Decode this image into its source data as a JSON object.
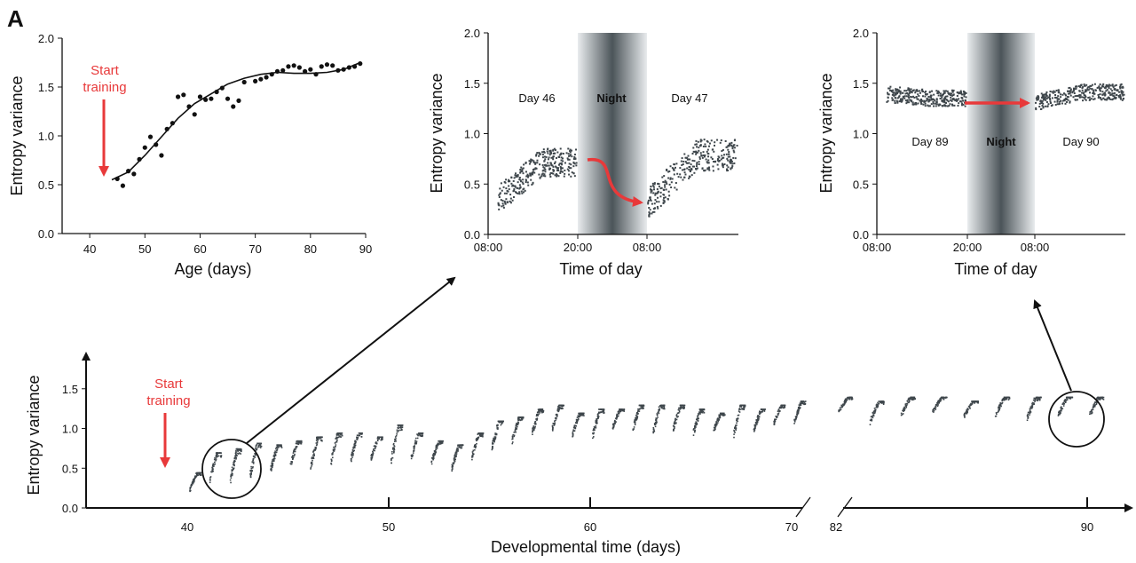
{
  "panel_label": "A",
  "colors": {
    "ink": "#111111",
    "accent_red": "#e8393a",
    "scatter_grey": "#3f474c",
    "night_band": "#4b5459"
  },
  "chart_data": [
    {
      "id": "age_curve",
      "type": "scatter",
      "xlabel": "Age (days)",
      "ylabel": "Entropy variance",
      "xlim": [
        35,
        90
      ],
      "ylim": [
        0,
        2.0
      ],
      "xticks": [
        "40",
        "50",
        "60",
        "70",
        "80",
        "90"
      ],
      "yticks": [
        "0.0",
        "0.5",
        "1.0",
        "1.5",
        "2.0"
      ],
      "annotation": [
        "Start",
        "training"
      ],
      "points": [
        [
          45,
          0.56
        ],
        [
          46,
          0.49
        ],
        [
          47,
          0.64
        ],
        [
          48,
          0.61
        ],
        [
          49,
          0.76
        ],
        [
          50,
          0.88
        ],
        [
          51,
          0.99
        ],
        [
          52,
          0.91
        ],
        [
          53,
          0.8
        ],
        [
          54,
          1.07
        ],
        [
          55,
          1.13
        ],
        [
          56,
          1.4
        ],
        [
          57,
          1.42
        ],
        [
          58,
          1.3
        ],
        [
          59,
          1.22
        ],
        [
          60,
          1.4
        ],
        [
          61,
          1.37
        ],
        [
          62,
          1.38
        ],
        [
          63,
          1.45
        ],
        [
          64,
          1.49
        ],
        [
          65,
          1.38
        ],
        [
          66,
          1.3
        ],
        [
          67,
          1.36
        ],
        [
          68,
          1.55
        ],
        [
          70,
          1.56
        ],
        [
          71,
          1.58
        ],
        [
          72,
          1.6
        ],
        [
          73,
          1.63
        ],
        [
          74,
          1.66
        ],
        [
          75,
          1.67
        ],
        [
          76,
          1.71
        ],
        [
          77,
          1.72
        ],
        [
          78,
          1.7
        ],
        [
          79,
          1.66
        ],
        [
          80,
          1.68
        ],
        [
          81,
          1.63
        ],
        [
          82,
          1.71
        ],
        [
          83,
          1.73
        ],
        [
          84,
          1.72
        ],
        [
          85,
          1.67
        ],
        [
          86,
          1.68
        ],
        [
          87,
          1.7
        ],
        [
          88,
          1.71
        ],
        [
          89,
          1.74
        ]
      ],
      "fit": [
        [
          44,
          0.55
        ],
        [
          47,
          0.63
        ],
        [
          50,
          0.8
        ],
        [
          53,
          0.99
        ],
        [
          56,
          1.18
        ],
        [
          59,
          1.33
        ],
        [
          62,
          1.43
        ],
        [
          65,
          1.53
        ],
        [
          68,
          1.59
        ],
        [
          71,
          1.63
        ],
        [
          74,
          1.65
        ],
        [
          77,
          1.64
        ],
        [
          80,
          1.64
        ],
        [
          83,
          1.65
        ],
        [
          86,
          1.68
        ],
        [
          89,
          1.75
        ]
      ]
    },
    {
      "id": "night_early",
      "type": "scatter",
      "xlabel": "Time of day",
      "ylabel": "Entropy variance",
      "ylim": [
        0,
        2.0
      ],
      "xticks": [
        "08:00",
        "20:00",
        "08:00"
      ],
      "yticks": [
        "0.0",
        "0.5",
        "1.0",
        "1.5",
        "2.0"
      ],
      "labels": {
        "day_before": "Day 46",
        "night": "Night",
        "day_after": "Day 47"
      },
      "clusters": [
        {
          "x_start": 0.0,
          "x_end": 0.44,
          "y_from": 0.35,
          "y_to": 0.72,
          "spread": 0.14
        },
        {
          "x_start": 0.86,
          "x_end": 1.0,
          "y_from": 0.32,
          "y_to": 0.8,
          "spread": 0.16
        }
      ]
    },
    {
      "id": "night_late",
      "type": "scatter",
      "xlabel": "Time of day",
      "ylabel": "Entropy variance",
      "ylim": [
        0,
        2.0
      ],
      "xticks": [
        "08:00",
        "20:00",
        "08:00"
      ],
      "yticks": [
        "0.0",
        "0.5",
        "1.0",
        "1.5",
        "2.0"
      ],
      "labels": {
        "day_before": "Day 89",
        "night": "Night",
        "day_after": "Day 90"
      },
      "clusters": [
        {
          "x_start": 0.0,
          "x_end": 0.44,
          "y_from": 1.4,
          "y_to": 1.36,
          "spread": 0.08
        },
        {
          "x_start": 0.86,
          "x_end": 1.0,
          "y_from": 1.32,
          "y_to": 1.42,
          "spread": 0.08
        }
      ]
    },
    {
      "id": "developmental",
      "type": "scatter",
      "xlabel": "Developmental time (days)",
      "ylabel": "Entropy variance",
      "ylim": [
        0,
        1.9
      ],
      "xticks": [
        "40",
        "50",
        "60",
        "70",
        "82",
        "90"
      ],
      "yticks": [
        "0.0",
        "0.5",
        "1.0",
        "1.5"
      ],
      "annotation": [
        "Start",
        "training"
      ],
      "days": [
        {
          "day": 40,
          "lo": 0.15,
          "hi": 0.45
        },
        {
          "day": 41,
          "lo": 0.25,
          "hi": 0.7
        },
        {
          "day": 42,
          "lo": 0.2,
          "hi": 0.75
        },
        {
          "day": 43,
          "lo": 0.28,
          "hi": 0.82
        },
        {
          "day": 44,
          "lo": 0.35,
          "hi": 0.8
        },
        {
          "day": 45,
          "lo": 0.45,
          "hi": 0.85
        },
        {
          "day": 46,
          "lo": 0.4,
          "hi": 0.9
        },
        {
          "day": 47,
          "lo": 0.45,
          "hi": 0.95
        },
        {
          "day": 48,
          "lo": 0.5,
          "hi": 0.95
        },
        {
          "day": 49,
          "lo": 0.55,
          "hi": 0.9
        },
        {
          "day": 50,
          "lo": 0.45,
          "hi": 1.05
        },
        {
          "day": 51,
          "lo": 0.55,
          "hi": 0.95
        },
        {
          "day": 52,
          "lo": 0.5,
          "hi": 0.85
        },
        {
          "day": 53,
          "lo": 0.4,
          "hi": 0.8
        },
        {
          "day": 54,
          "lo": 0.55,
          "hi": 0.95
        },
        {
          "day": 55,
          "lo": 0.65,
          "hi": 1.1
        },
        {
          "day": 56,
          "lo": 0.75,
          "hi": 1.15
        },
        {
          "day": 57,
          "lo": 0.85,
          "hi": 1.25
        },
        {
          "day": 58,
          "lo": 0.9,
          "hi": 1.3
        },
        {
          "day": 59,
          "lo": 0.85,
          "hi": 1.2
        },
        {
          "day": 60,
          "lo": 0.8,
          "hi": 1.25
        },
        {
          "day": 61,
          "lo": 0.95,
          "hi": 1.25
        },
        {
          "day": 62,
          "lo": 0.9,
          "hi": 1.3
        },
        {
          "day": 63,
          "lo": 0.85,
          "hi": 1.3
        },
        {
          "day": 64,
          "lo": 0.9,
          "hi": 1.3
        },
        {
          "day": 65,
          "lo": 0.85,
          "hi": 1.25
        },
        {
          "day": 66,
          "lo": 0.9,
          "hi": 1.2
        },
        {
          "day": 67,
          "lo": 0.8,
          "hi": 1.3
        },
        {
          "day": 68,
          "lo": 0.9,
          "hi": 1.25
        },
        {
          "day": 69,
          "lo": 1.0,
          "hi": 1.3
        },
        {
          "day": 70,
          "lo": 1.0,
          "hi": 1.35
        },
        {
          "day": 82,
          "lo": 1.15,
          "hi": 1.4
        },
        {
          "day": 83,
          "lo": 1.0,
          "hi": 1.35
        },
        {
          "day": 84,
          "lo": 1.1,
          "hi": 1.4
        },
        {
          "day": 85,
          "lo": 1.15,
          "hi": 1.4
        },
        {
          "day": 86,
          "lo": 1.1,
          "hi": 1.35
        },
        {
          "day": 87,
          "lo": 1.1,
          "hi": 1.4
        },
        {
          "day": 88,
          "lo": 1.05,
          "hi": 1.4
        },
        {
          "day": 89,
          "lo": 1.1,
          "hi": 1.4
        },
        {
          "day": 90,
          "lo": 1.1,
          "hi": 1.4
        }
      ],
      "highlight_early": {
        "from": 41.5,
        "to": 44.5
      },
      "highlight_late": {
        "from": 88.5,
        "to": 90.5
      }
    }
  ]
}
